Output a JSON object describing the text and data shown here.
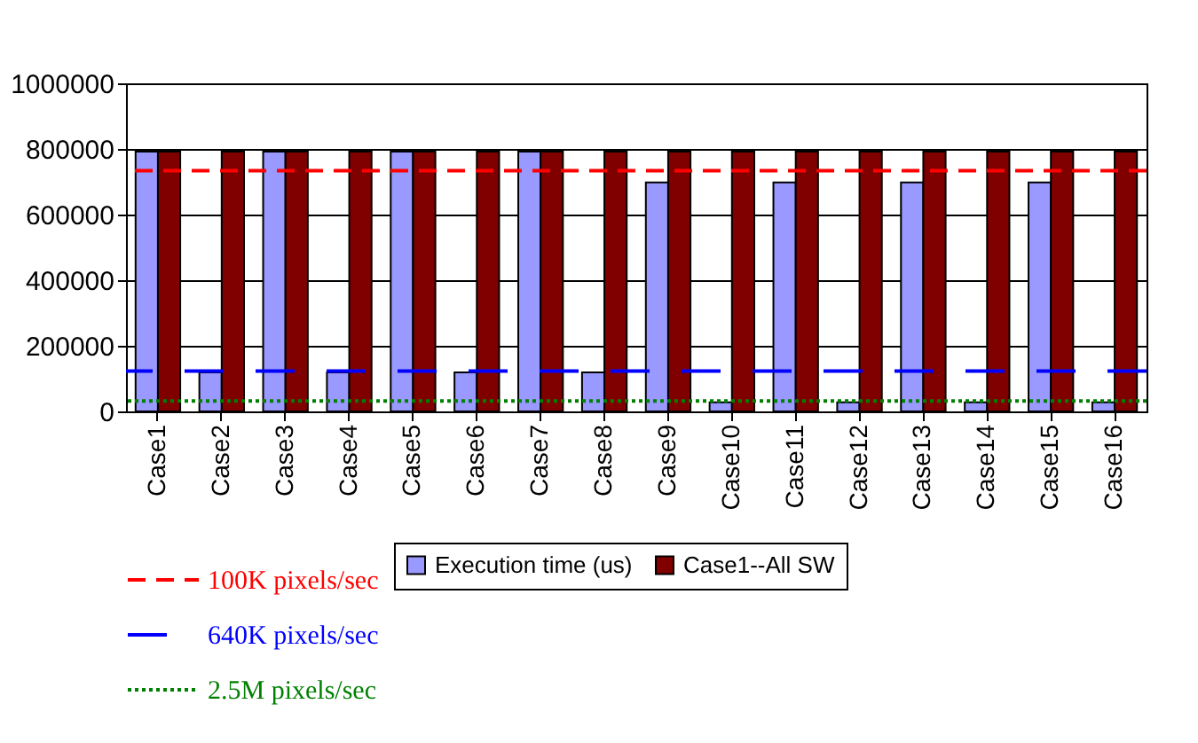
{
  "chart_data": {
    "type": "bar",
    "categories": [
      "Case1",
      "Case2",
      "Case3",
      "Case4",
      "Case5",
      "Case6",
      "Case7",
      "Case8",
      "Case9",
      "Case10",
      "Case11",
      "Case12",
      "Case13",
      "Case14",
      "Case15",
      "Case16"
    ],
    "series": [
      {
        "name": "Execution time (us)",
        "color": "#9999ff",
        "values": [
          792000,
          119000,
          792000,
          119000,
          792000,
          119000,
          792000,
          119000,
          698000,
          28000,
          698000,
          28000,
          698000,
          28000,
          698000,
          28000
        ]
      },
      {
        "name": "Case1--All SW",
        "color": "#800000",
        "values": [
          792000,
          792000,
          792000,
          792000,
          792000,
          792000,
          792000,
          792000,
          792000,
          792000,
          792000,
          792000,
          792000,
          792000,
          792000,
          792000
        ]
      }
    ],
    "ylim": [
      0,
      1000000
    ],
    "yticks": [
      0,
      200000,
      400000,
      600000,
      800000,
      1000000
    ],
    "grid": "y",
    "legend": "bottom",
    "ref_lines": [
      {
        "axis": "y",
        "value": 734000,
        "label": "100K pixels/sec",
        "color": "#ff0000",
        "line_style": "dashed"
      },
      {
        "axis": "y",
        "value": 123000,
        "label": "640K pixels/sec",
        "color": "#0000ff",
        "line_style": "longdash"
      },
      {
        "axis": "y",
        "value": 32000,
        "label": "2.5M pixels/sec",
        "color": "#008000",
        "line_style": "dotted"
      }
    ]
  }
}
